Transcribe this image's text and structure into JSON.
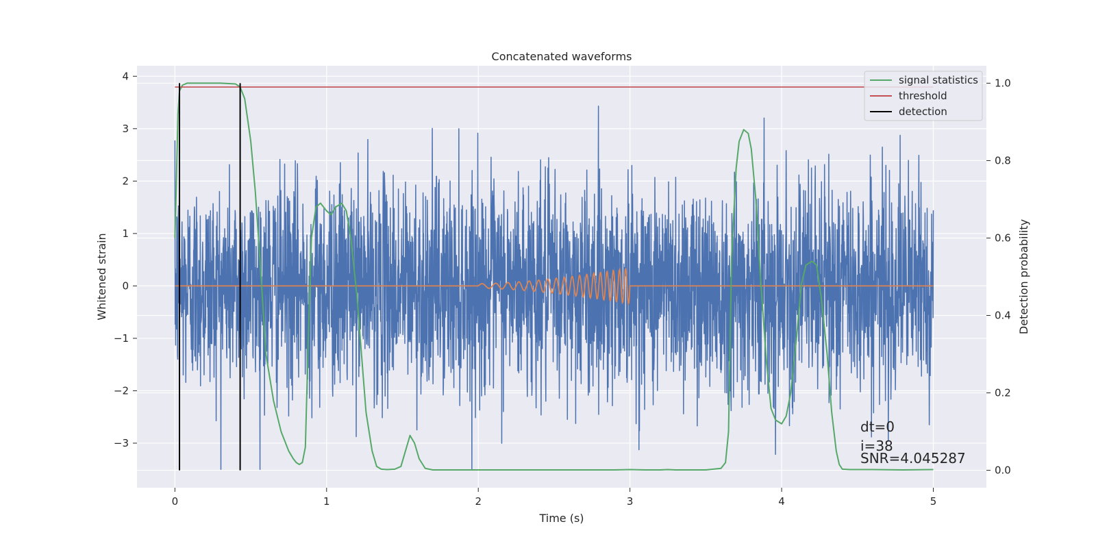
{
  "chart_data": {
    "type": "line",
    "title": "Concatenated waveforms",
    "xlabel": "Time (s)",
    "ylabel": "Whitened strain",
    "y2label": "Detection probability",
    "xlim": [
      -0.25,
      5.35
    ],
    "ylim": [
      -3.85,
      4.2
    ],
    "y2lim": [
      -0.045,
      1.045
    ],
    "xticks": [
      0,
      1,
      2,
      3,
      4,
      5
    ],
    "yticks": [
      -3,
      -2,
      -1,
      0,
      1,
      2,
      3,
      4
    ],
    "y2ticks": [
      0.0,
      0.2,
      0.4,
      0.6,
      0.8,
      1.0
    ],
    "xtick_labels": [
      "0",
      "1",
      "2",
      "3",
      "4",
      "5"
    ],
    "ytick_labels": [
      "−3",
      "−2",
      "−1",
      "0",
      "1",
      "2",
      "3",
      "4"
    ],
    "y2tick_labels": [
      "0.0",
      "0.2",
      "0.4",
      "0.6",
      "0.8",
      "1.0"
    ],
    "grid": true,
    "legend_position": "top-right",
    "legend": [
      "signal statistics",
      "threshold",
      "detection"
    ],
    "colors": {
      "strain": "#4c72b0",
      "injected_waveform": "#dd8452",
      "signal_statistics": "#55a868",
      "threshold": "#c44e52",
      "detection": "#000000",
      "plot_bg": "#eaeaf2",
      "grid": "#ffffff"
    },
    "series": [
      {
        "name": "signal statistics",
        "axis": "right",
        "x": [
          0.0,
          0.01,
          0.02,
          0.03,
          0.05,
          0.08,
          0.1,
          0.2,
          0.3,
          0.4,
          0.43,
          0.46,
          0.5,
          0.53,
          0.56,
          0.6,
          0.65,
          0.7,
          0.75,
          0.78,
          0.8,
          0.82,
          0.84,
          0.86,
          0.88,
          0.9,
          0.93,
          0.96,
          1.0,
          1.03,
          1.06,
          1.1,
          1.13,
          1.16,
          1.2,
          1.23,
          1.26,
          1.3,
          1.33,
          1.36,
          1.4,
          1.45,
          1.49,
          1.52,
          1.55,
          1.58,
          1.61,
          1.65,
          1.7,
          2.0,
          2.5,
          2.9,
          3.0,
          3.1,
          3.2,
          3.25,
          3.3,
          3.5,
          3.6,
          3.63,
          3.65,
          3.67,
          3.7,
          3.72,
          3.75,
          3.78,
          3.8,
          3.83,
          3.86,
          3.9,
          3.93,
          3.96,
          4.0,
          4.03,
          4.06,
          4.1,
          4.13,
          4.16,
          4.2,
          4.23,
          4.26,
          4.3,
          4.33,
          4.36,
          4.38,
          4.4,
          4.45,
          4.6,
          4.8,
          5.0
        ],
        "values": [
          0.6,
          0.75,
          0.92,
          0.98,
          0.995,
          1.0,
          1.0,
          1.0,
          1.0,
          0.998,
          0.99,
          0.96,
          0.85,
          0.72,
          0.55,
          0.3,
          0.18,
          0.1,
          0.05,
          0.03,
          0.02,
          0.015,
          0.02,
          0.06,
          0.35,
          0.6,
          0.68,
          0.69,
          0.67,
          0.66,
          0.68,
          0.69,
          0.67,
          0.6,
          0.45,
          0.3,
          0.15,
          0.05,
          0.01,
          0.003,
          0.002,
          0.003,
          0.01,
          0.05,
          0.09,
          0.07,
          0.03,
          0.005,
          0.001,
          0.001,
          0.001,
          0.001,
          0.002,
          0.001,
          0.001,
          0.002,
          0.001,
          0.001,
          0.005,
          0.02,
          0.1,
          0.55,
          0.78,
          0.85,
          0.88,
          0.87,
          0.83,
          0.7,
          0.5,
          0.28,
          0.16,
          0.13,
          0.12,
          0.14,
          0.2,
          0.35,
          0.48,
          0.53,
          0.54,
          0.53,
          0.45,
          0.3,
          0.15,
          0.05,
          0.015,
          0.003,
          0.002,
          0.002,
          0.001,
          0.002
        ]
      },
      {
        "name": "threshold",
        "axis": "right",
        "x": [
          0.0,
          5.0
        ],
        "values": [
          0.99,
          0.99
        ]
      },
      {
        "name": "detection",
        "axis": "right",
        "type": "vlines",
        "x": [
          0.03,
          0.43
        ],
        "ymin": 0.0,
        "ymax": 1.0
      },
      {
        "axis": "left",
        "role": "whitened strain noise",
        "x_range": [
          0.0,
          5.0
        ],
        "typical_amplitude": 1.0,
        "peak_range": [
          -3.5,
          3.5
        ]
      },
      {
        "axis": "left",
        "role": "injected waveform (chirp)",
        "x_range": [
          0.0,
          5.0
        ],
        "chirp_start": 2.0,
        "chirp_end": 3.0,
        "chirp_peak_amplitude": 0.35
      }
    ],
    "annotations": [
      "dt=0",
      "i=38",
      "SNR=4.045287"
    ]
  }
}
